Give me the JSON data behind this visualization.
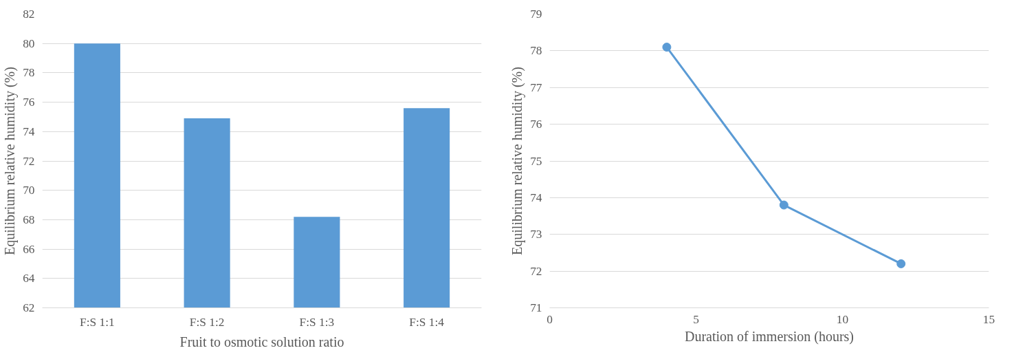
{
  "chart_data": [
    {
      "type": "bar",
      "xlabel": "Fruit to osmotic solution ratio",
      "ylabel": "Equilibrium relative humidity (%)",
      "categories": [
        "F:S 1:1",
        "F:S 1:2",
        "F:S 1:3",
        "F:S 1:4"
      ],
      "values": [
        80,
        74.9,
        68.2,
        75.6
      ],
      "color": "#5b9bd5",
      "ylim": [
        62,
        82
      ],
      "yticks": [
        62,
        64,
        66,
        68,
        70,
        72,
        74,
        76,
        78,
        80,
        82
      ],
      "grid": "y"
    },
    {
      "type": "line",
      "xlabel": "Duration of immersion (hours)",
      "ylabel": "Equilibrium relative humidity (%)",
      "x": [
        4,
        8,
        12
      ],
      "values": [
        78.1,
        73.8,
        72.2
      ],
      "color": "#5b9bd5",
      "marker": "circle",
      "line_style": "solid",
      "xlim": [
        0,
        15
      ],
      "xticks": [
        0,
        5,
        10,
        15
      ],
      "ylim": [
        71,
        79
      ],
      "yticks": [
        71,
        72,
        73,
        74,
        75,
        76,
        77,
        78,
        79
      ],
      "grid": "y"
    }
  ]
}
